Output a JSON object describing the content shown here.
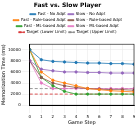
{
  "chart_data": {
    "type": "line",
    "title": "Fast vs. Slow Player",
    "x_label": "Game Step",
    "y_label": "Memorization Time (ms)",
    "x": [
      0,
      1,
      2,
      3,
      4,
      5,
      6,
      7,
      8,
      9
    ],
    "xlim": [
      0,
      9
    ],
    "xticks": [
      0,
      1,
      2,
      3,
      4,
      5,
      6,
      7,
      8,
      9
    ],
    "ylim": [
      0,
      11000
    ],
    "yticks": [
      0,
      2000,
      4000,
      6000,
      8000,
      10000
    ],
    "grid": true,
    "legend": "top",
    "series": [
      {
        "name": "Fast - No Adpt",
        "color": "#1f77b4",
        "marker": "circle",
        "line_style": "solid",
        "values": [
          10000,
          8200,
          7900,
          7800,
          7700,
          7600,
          7600,
          7500,
          7500,
          7400
        ]
      },
      {
        "name": "Slow - No Adpt",
        "color": "#9467bd",
        "marker": "circle",
        "line_style": "solid",
        "values": [
          8000,
          6500,
          6200,
          6000,
          6000,
          5900,
          5900,
          5800,
          5800,
          5800
        ]
      },
      {
        "name": "Fast - Rule-based Adpt",
        "color": "#ff7f0e",
        "marker": "circle",
        "line_style": "solid",
        "values": [
          10000,
          6000,
          4500,
          4000,
          3500,
          3000,
          2800,
          2600,
          2500,
          2400
        ]
      },
      {
        "name": "Slow - Rule-based Adpt",
        "color": "#8c564b",
        "marker": "circle",
        "line_style": "solid",
        "values": [
          8000,
          5000,
          4000,
          3500,
          3200,
          3000,
          2900,
          2800,
          2800,
          2700
        ]
      },
      {
        "name": "Fast - ML-based Adpt",
        "color": "#2ca02c",
        "marker": "circle",
        "line_style": "solid",
        "values": [
          10000,
          5000,
          3500,
          2500,
          2000,
          2000,
          2000,
          2000,
          2000,
          2000
        ]
      },
      {
        "name": "Slow - ML-based Adpt",
        "color": "#e377c2",
        "marker": "circle",
        "line_style": "solid",
        "values": [
          8000,
          4000,
          3000,
          3000,
          3000,
          3000,
          3000,
          3000,
          3000,
          3000
        ]
      },
      {
        "name": "Target (Lower Limit)",
        "color": "#d62728",
        "line_style": "dashed",
        "values": [
          2000,
          2000,
          2000,
          2000,
          2000,
          2000,
          2000,
          2000,
          2000,
          2000
        ]
      },
      {
        "name": "Target (Upper Limit)",
        "color": "#7f7f7f",
        "line_style": "dashed",
        "values": [
          3000,
          3000,
          3000,
          3000,
          3000,
          3000,
          3000,
          3000,
          3000,
          3000
        ]
      }
    ]
  }
}
